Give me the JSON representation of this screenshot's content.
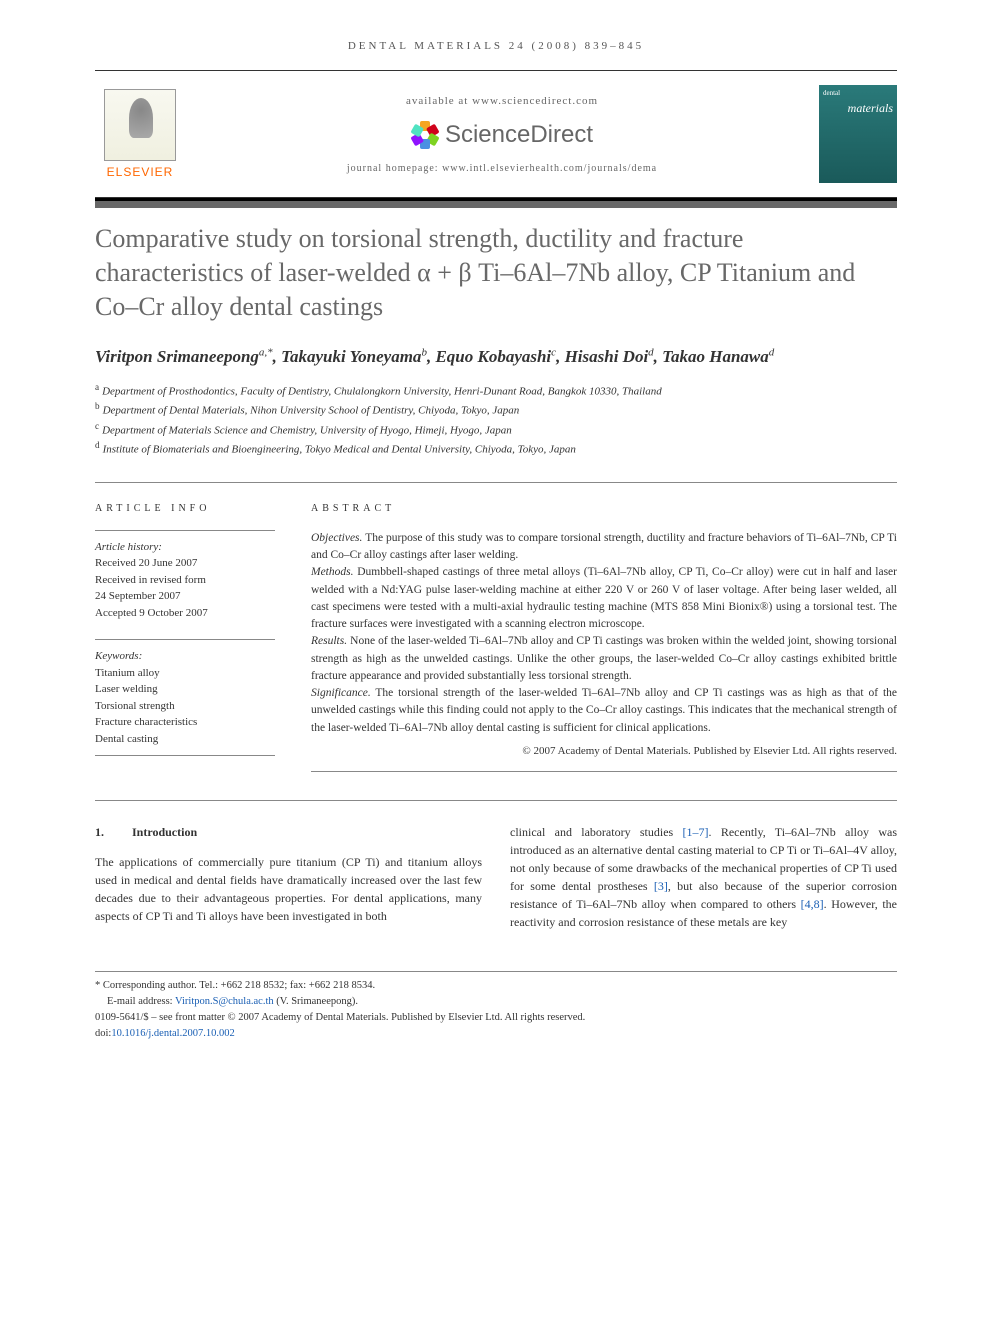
{
  "running_head": "DENTAL MATERIALS 24 (2008) 839–845",
  "header": {
    "available": "available at www.sciencedirect.com",
    "sd_brand": "ScienceDirect",
    "elsevier": "ELSEVIER",
    "homepage": "journal homepage: www.intl.elsevierhealth.com/journals/dema",
    "cover_small": "dental",
    "cover_title": "materials"
  },
  "sd_petals": [
    "#f5a623",
    "#d0021b",
    "#7ed321",
    "#4a90e2",
    "#9013fe",
    "#50e3c2"
  ],
  "title": "Comparative study on torsional strength, ductility and fracture characteristics of laser-welded α + β Ti–6Al–7Nb alloy, CP Titanium and Co–Cr alloy dental castings",
  "authors": [
    {
      "name": "Viritpon Srimaneepong",
      "sup": "a,*"
    },
    {
      "name": "Takayuki Yoneyama",
      "sup": "b"
    },
    {
      "name": "Equo Kobayashi",
      "sup": "c"
    },
    {
      "name": "Hisashi Doi",
      "sup": "d"
    },
    {
      "name": "Takao Hanawa",
      "sup": "d"
    }
  ],
  "affiliations": [
    {
      "sup": "a",
      "text": "Department of Prosthodontics, Faculty of Dentistry, Chulalongkorn University, Henri-Dunant Road, Bangkok 10330, Thailand"
    },
    {
      "sup": "b",
      "text": "Department of Dental Materials, Nihon University School of Dentistry, Chiyoda, Tokyo, Japan"
    },
    {
      "sup": "c",
      "text": "Department of Materials Science and Chemistry, University of Hyogo, Himeji, Hyogo, Japan"
    },
    {
      "sup": "d",
      "text": "Institute of Biomaterials and Bioengineering, Tokyo Medical and Dental University, Chiyoda, Tokyo, Japan"
    }
  ],
  "info": {
    "heading": "ARTICLE INFO",
    "history_label": "Article history:",
    "received": "Received 20 June 2007",
    "revised1": "Received in revised form",
    "revised2": "24 September 2007",
    "accepted": "Accepted 9 October 2007",
    "kw_label": "Keywords:",
    "keywords": [
      "Titanium alloy",
      "Laser welding",
      "Torsional strength",
      "Fracture characteristics",
      "Dental casting"
    ]
  },
  "abstract": {
    "heading": "ABSTRACT",
    "objectives_label": "Objectives.",
    "objectives": " The purpose of this study was to compare torsional strength, ductility and fracture behaviors of Ti–6Al–7Nb, CP Ti and Co–Cr alloy castings after laser welding.",
    "methods_label": "Methods.",
    "methods": " Dumbbell-shaped castings of three metal alloys (Ti–6Al–7Nb alloy, CP Ti, Co–Cr alloy) were cut in half and laser welded with a Nd:YAG pulse laser-welding machine at either 220 V or 260 V of laser voltage. After being laser welded, all cast specimens were tested with a multi-axial hydraulic testing machine (MTS 858 Mini Bionix®) using a torsional test. The fracture surfaces were investigated with a scanning electron microscope.",
    "results_label": "Results.",
    "results": " None of the laser-welded Ti–6Al–7Nb alloy and CP Ti castings was broken within the welded joint, showing torsional strength as high as the unwelded castings. Unlike the other groups, the laser-welded Co–Cr alloy castings exhibited brittle fracture appearance and provided substantially less torsional strength.",
    "significance_label": "Significance.",
    "significance": " The torsional strength of the laser-welded Ti–6Al–7Nb alloy and CP Ti castings was as high as that of the unwelded castings while this finding could not apply to the Co–Cr alloy castings. This indicates that the mechanical strength of the laser-welded Ti–6Al–7Nb alloy dental casting is sufficient for clinical applications.",
    "copyright": "© 2007 Academy of Dental Materials. Published by Elsevier Ltd. All rights reserved."
  },
  "body": {
    "section_num": "1.",
    "section_title": "Introduction",
    "col1": "The applications of commercially pure titanium (CP Ti) and titanium alloys used in medical and dental fields have dramatically increased over the last few decades due to their advantageous properties. For dental applications, many aspects of CP Ti and Ti alloys have been investigated in both",
    "col2_a": "clinical and laboratory studies ",
    "ref1": "[1–7]",
    "col2_b": ". Recently, Ti–6Al–7Nb alloy was introduced as an alternative dental casting material to CP Ti or Ti–6Al–4V alloy, not only because of some drawbacks of the mechanical properties of CP Ti used for some dental prostheses ",
    "ref2": "[3]",
    "col2_c": ", but also because of the superior corrosion resistance of Ti–6Al–7Nb alloy when compared to others ",
    "ref3": "[4,8]",
    "col2_d": ". However, the reactivity and corrosion resistance of these metals are key"
  },
  "footnotes": {
    "corr": "* Corresponding author. Tel.: +662 218 8532; fax: +662 218 8534.",
    "email_label": "E-mail address: ",
    "email": "Viritpon.S@chula.ac.th",
    "email_tail": " (V. Srimaneepong).",
    "issn": "0109-5641/$ – see front matter © 2007 Academy of Dental Materials. Published by Elsevier Ltd. All rights reserved.",
    "doi_label": "doi:",
    "doi": "10.1016/j.dental.2007.10.002"
  }
}
